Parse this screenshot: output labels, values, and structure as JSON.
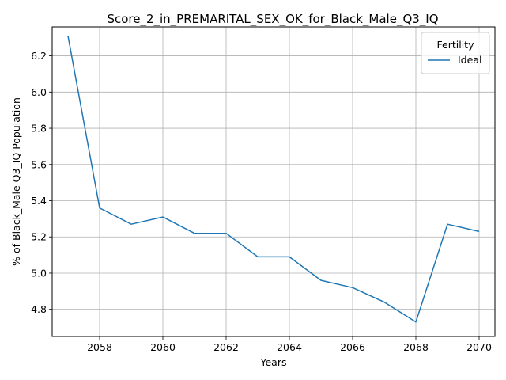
{
  "chart_data": {
    "type": "line",
    "title": "Score_2_in_PREMARITAL_SEX_OK_for_Black_Male_Q3_IQ",
    "xlabel": "Years",
    "ylabel": "% of Black_Male Q3_IQ Population",
    "xlim": [
      2056.5,
      2070.5
    ],
    "ylim": [
      4.65,
      6.36
    ],
    "xticks": [
      2058,
      2060,
      2062,
      2064,
      2066,
      2068,
      2070
    ],
    "yticks": [
      4.8,
      5.0,
      5.2,
      5.4,
      5.6,
      5.8,
      6.0,
      6.2
    ],
    "grid": true,
    "legend": {
      "title": "Fertility",
      "placement": "top-right"
    },
    "series": [
      {
        "name": "Ideal",
        "color": "#1f77b4",
        "x": [
          2057,
          2058,
          2059,
          2060,
          2061,
          2062,
          2063,
          2064,
          2065,
          2066,
          2067,
          2068,
          2069,
          2070
        ],
        "y": [
          6.31,
          5.36,
          5.27,
          5.31,
          5.22,
          5.22,
          5.09,
          5.09,
          4.96,
          4.92,
          4.84,
          4.73,
          5.27,
          5.23
        ]
      }
    ]
  }
}
